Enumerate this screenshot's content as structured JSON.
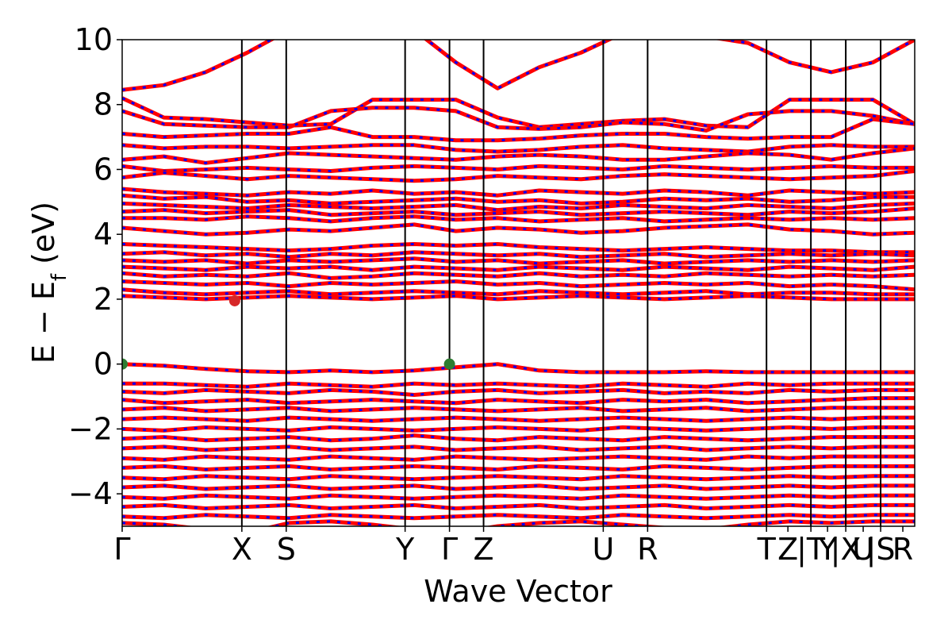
{
  "chart_data": {
    "type": "line",
    "title": "",
    "xlabel": "Wave Vector",
    "ylabel": "E − E",
    "ylabel_sub": "f",
    "ylabel_unit": " (eV)",
    "ylim": [
      -5,
      10
    ],
    "yticks": [
      -4,
      -2,
      0,
      2,
      4,
      6,
      8,
      10
    ],
    "ytick_labels": [
      "−4",
      "−2",
      "0",
      "2",
      "4",
      "6",
      "8",
      "10"
    ],
    "xlim": [
      0,
      1
    ],
    "kpath": [
      {
        "label": "Γ",
        "x": 0.0
      },
      {
        "label": "X",
        "x": 0.151
      },
      {
        "label": "S",
        "x": 0.207
      },
      {
        "label": "Y",
        "x": 0.357
      },
      {
        "label": "Γ",
        "x": 0.413
      },
      {
        "label": "Z",
        "x": 0.456
      },
      {
        "label": "U",
        "x": 0.607
      },
      {
        "label": "R",
        "x": 0.663
      },
      {
        "label": "T",
        "x": 0.813
      },
      {
        "label": "Z",
        "x": 0.84
      },
      {
        "label": "|T",
        "x": 0.869
      },
      {
        "label": "Y",
        "x": 0.89
      },
      {
        "label": "|X",
        "x": 0.913
      },
      {
        "label": "U",
        "x": 0.935
      },
      {
        "label": "|S",
        "x": 0.957
      },
      {
        "label": "R",
        "x": 0.985
      }
    ],
    "vlines": [
      0.151,
      0.207,
      0.357,
      0.413,
      0.456,
      0.607,
      0.663,
      0.813,
      0.869,
      0.913,
      0.957
    ],
    "grid": false,
    "series": [
      {
        "line_color": "#ff0000",
        "dash_color": "#0000ff"
      }
    ],
    "markers": [
      {
        "x": 0.0,
        "y": 0.0,
        "color": "#2e7d32"
      },
      {
        "x": 0.413,
        "y": 0.0,
        "color": "#2e7d32"
      },
      {
        "x": 0.142,
        "y": 1.95,
        "color": "#d62728"
      }
    ],
    "bands": [
      {
        "y": [
          8.45,
          8.6,
          9.0,
          9.6,
          10.3,
          10.8,
          10.7,
          10.3,
          9.3,
          8.5,
          9.15,
          9.6,
          10.2,
          10.5,
          10.1,
          9.9,
          9.3,
          9.0,
          9.3,
          10.0
        ]
      },
      {
        "y": [
          8.2,
          7.6,
          7.55,
          7.45,
          7.35,
          7.4,
          8.15,
          8.15,
          8.15,
          7.6,
          7.3,
          7.4,
          7.5,
          7.55,
          7.35,
          7.3,
          8.15,
          8.15,
          8.15,
          7.4
        ]
      },
      {
        "y": [
          7.8,
          7.4,
          7.35,
          7.3,
          7.3,
          7.8,
          7.9,
          7.9,
          7.8,
          7.3,
          7.25,
          7.3,
          7.45,
          7.4,
          7.2,
          7.7,
          7.8,
          7.8,
          7.65,
          7.4
        ]
      },
      {
        "y": [
          7.1,
          7.0,
          7.05,
          7.1,
          7.1,
          7.3,
          7.0,
          7.0,
          6.9,
          6.9,
          6.95,
          7.05,
          7.1,
          7.1,
          7.0,
          6.95,
          7.0,
          7.0,
          7.55,
          7.4
        ]
      },
      {
        "y": [
          6.75,
          6.65,
          6.7,
          6.7,
          6.65,
          6.7,
          6.75,
          6.75,
          6.6,
          6.55,
          6.6,
          6.7,
          6.75,
          6.65,
          6.6,
          6.55,
          6.7,
          6.75,
          6.7,
          6.7
        ]
      },
      {
        "y": [
          6.3,
          6.4,
          6.2,
          6.35,
          6.5,
          6.45,
          6.4,
          6.35,
          6.3,
          6.4,
          6.45,
          6.4,
          6.3,
          6.3,
          6.4,
          6.5,
          6.45,
          6.3,
          6.5,
          6.65
        ]
      },
      {
        "y": [
          6.1,
          5.95,
          6.0,
          6.05,
          6.0,
          5.95,
          6.05,
          6.1,
          6.05,
          6.0,
          6.1,
          6.05,
          6.0,
          6.1,
          6.05,
          6.0,
          6.05,
          6.1,
          6.05,
          6.05
        ]
      },
      {
        "y": [
          5.75,
          5.9,
          5.8,
          5.7,
          5.8,
          5.75,
          5.7,
          5.65,
          5.7,
          5.8,
          5.75,
          5.7,
          5.8,
          5.85,
          5.8,
          5.75,
          5.7,
          5.75,
          5.8,
          5.95
        ]
      },
      {
        "y": [
          5.4,
          5.3,
          5.25,
          5.2,
          5.3,
          5.25,
          5.35,
          5.25,
          5.3,
          5.2,
          5.35,
          5.3,
          5.25,
          5.35,
          5.3,
          5.2,
          5.35,
          5.3,
          5.25,
          5.3
        ]
      },
      {
        "y": [
          5.2,
          5.1,
          5.15,
          5.0,
          5.05,
          4.95,
          5.0,
          5.05,
          5.1,
          5.0,
          5.05,
          4.95,
          5.0,
          5.1,
          5.05,
          5.1,
          5.0,
          5.05,
          5.15,
          5.15
        ]
      },
      {
        "y": [
          4.95,
          4.9,
          4.85,
          4.8,
          4.9,
          4.85,
          4.8,
          4.85,
          4.9,
          4.75,
          4.85,
          4.8,
          4.9,
          4.85,
          4.8,
          4.9,
          4.85,
          4.8,
          4.9,
          4.95
        ]
      },
      {
        "y": [
          4.7,
          4.75,
          4.65,
          4.7,
          4.75,
          4.6,
          4.65,
          4.7,
          4.6,
          4.65,
          4.7,
          4.6,
          4.65,
          4.7,
          4.65,
          4.6,
          4.7,
          4.65,
          4.7,
          4.8
        ]
      },
      {
        "y": [
          4.5,
          4.5,
          4.45,
          4.55,
          4.5,
          4.4,
          4.5,
          4.55,
          4.45,
          4.5,
          4.4,
          4.45,
          4.5,
          4.4,
          4.45,
          4.5,
          4.45,
          4.5,
          4.45,
          4.5
        ]
      },
      {
        "y": [
          4.2,
          4.1,
          4.0,
          4.05,
          4.15,
          4.1,
          4.2,
          4.3,
          4.1,
          4.2,
          4.15,
          4.05,
          4.1,
          4.2,
          4.25,
          4.3,
          4.15,
          4.1,
          4.0,
          4.05
        ]
      },
      {
        "y": [
          3.7,
          3.65,
          3.6,
          3.55,
          3.5,
          3.55,
          3.65,
          3.7,
          3.65,
          3.7,
          3.6,
          3.55,
          3.5,
          3.55,
          3.6,
          3.55,
          3.5,
          3.5,
          3.45,
          3.45
        ]
      },
      {
        "y": [
          3.4,
          3.45,
          3.35,
          3.4,
          3.3,
          3.4,
          3.35,
          3.45,
          3.4,
          3.35,
          3.4,
          3.3,
          3.35,
          3.4,
          3.3,
          3.35,
          3.4,
          3.35,
          3.4,
          3.35
        ]
      },
      {
        "y": [
          3.2,
          3.15,
          3.2,
          3.1,
          3.2,
          3.15,
          3.2,
          3.25,
          3.15,
          3.2,
          3.1,
          3.15,
          3.2,
          3.1,
          3.15,
          3.2,
          3.15,
          3.2,
          3.15,
          3.2
        ]
      },
      {
        "y": [
          3.0,
          2.95,
          2.9,
          3.0,
          2.95,
          3.0,
          2.9,
          3.0,
          2.95,
          2.9,
          3.0,
          2.95,
          2.9,
          3.0,
          2.95,
          2.9,
          3.0,
          2.95,
          2.9,
          3.0
        ]
      },
      {
        "y": [
          2.8,
          2.7,
          2.75,
          2.7,
          2.8,
          2.65,
          2.7,
          2.8,
          2.75,
          2.7,
          2.8,
          2.7,
          2.75,
          2.7,
          2.8,
          2.75,
          2.7,
          2.75,
          2.7,
          2.75
        ]
      },
      {
        "y": [
          2.55,
          2.5,
          2.45,
          2.5,
          2.4,
          2.5,
          2.45,
          2.5,
          2.55,
          2.45,
          2.5,
          2.4,
          2.45,
          2.5,
          2.45,
          2.5,
          2.4,
          2.45,
          2.4,
          2.3
        ]
      },
      {
        "y": [
          2.3,
          2.2,
          2.15,
          2.2,
          2.25,
          2.15,
          2.2,
          2.25,
          2.2,
          2.15,
          2.25,
          2.2,
          2.15,
          2.2,
          2.25,
          2.15,
          2.2,
          2.2,
          2.15,
          2.15
        ]
      },
      {
        "y": [
          2.1,
          2.05,
          2.0,
          2.05,
          2.1,
          2.05,
          2.0,
          2.05,
          2.1,
          2.0,
          2.05,
          2.1,
          2.05,
          2.0,
          2.05,
          2.1,
          2.05,
          2.0,
          2.0,
          2.0
        ]
      },
      {
        "y": [
          0.0,
          -0.05,
          -0.15,
          -0.22,
          -0.25,
          -0.2,
          -0.25,
          -0.2,
          -0.1,
          0.0,
          -0.2,
          -0.25,
          -0.25,
          -0.25,
          -0.22,
          -0.25,
          -0.25,
          -0.25,
          -0.25,
          -0.25
        ]
      },
      {
        "y": [
          -0.6,
          -0.6,
          -0.65,
          -0.7,
          -0.6,
          -0.65,
          -0.7,
          -0.6,
          -0.65,
          -0.6,
          -0.65,
          -0.7,
          -0.6,
          -0.65,
          -0.7,
          -0.6,
          -0.65,
          -0.6,
          -0.6,
          -0.6
        ]
      },
      {
        "y": [
          -0.85,
          -0.9,
          -0.8,
          -0.85,
          -0.9,
          -0.8,
          -0.85,
          -0.95,
          -0.85,
          -0.8,
          -0.9,
          -0.85,
          -0.8,
          -0.9,
          -0.85,
          -0.9,
          -0.8,
          -0.85,
          -0.8,
          -0.8
        ]
      },
      {
        "y": [
          -1.1,
          -1.2,
          -1.15,
          -1.1,
          -1.2,
          -1.15,
          -1.1,
          -1.15,
          -1.2,
          -1.1,
          -1.15,
          -1.2,
          -1.1,
          -1.15,
          -1.1,
          -1.2,
          -1.15,
          -1.1,
          -1.05,
          -1.05
        ]
      },
      {
        "y": [
          -1.4,
          -1.35,
          -1.45,
          -1.4,
          -1.35,
          -1.45,
          -1.4,
          -1.35,
          -1.4,
          -1.45,
          -1.4,
          -1.35,
          -1.45,
          -1.4,
          -1.35,
          -1.45,
          -1.4,
          -1.35,
          -1.35,
          -1.35
        ]
      },
      {
        "y": [
          -1.7,
          -1.65,
          -1.7,
          -1.75,
          -1.65,
          -1.7,
          -1.75,
          -1.7,
          -1.65,
          -1.7,
          -1.75,
          -1.7,
          -1.65,
          -1.7,
          -1.75,
          -1.7,
          -1.65,
          -1.7,
          -1.65,
          -1.65
        ]
      },
      {
        "y": [
          -2.0,
          -2.05,
          -1.95,
          -2.0,
          -2.05,
          -1.95,
          -2.0,
          -2.05,
          -2.0,
          -1.95,
          -2.0,
          -2.05,
          -1.95,
          -2.0,
          -2.05,
          -2.0,
          -1.95,
          -2.0,
          -1.95,
          -1.95
        ]
      },
      {
        "y": [
          -2.3,
          -2.25,
          -2.35,
          -2.3,
          -2.25,
          -2.35,
          -2.3,
          -2.2,
          -2.3,
          -2.35,
          -2.25,
          -2.3,
          -2.35,
          -2.25,
          -2.3,
          -2.35,
          -2.3,
          -2.25,
          -2.25,
          -2.25
        ]
      },
      {
        "y": [
          -2.6,
          -2.55,
          -2.65,
          -2.6,
          -2.55,
          -2.65,
          -2.6,
          -2.55,
          -2.65,
          -2.6,
          -2.55,
          -2.65,
          -2.6,
          -2.55,
          -2.65,
          -2.6,
          -2.55,
          -2.6,
          -2.55,
          -2.55
        ]
      },
      {
        "y": [
          -2.9,
          -2.95,
          -2.85,
          -2.9,
          -2.95,
          -2.85,
          -2.9,
          -2.95,
          -2.85,
          -2.9,
          -2.95,
          -2.9,
          -2.85,
          -2.9,
          -2.95,
          -2.85,
          -2.9,
          -2.85,
          -2.85,
          -2.85
        ]
      },
      {
        "y": [
          -3.2,
          -3.15,
          -3.25,
          -3.2,
          -3.15,
          -3.25,
          -3.2,
          -3.15,
          -3.2,
          -3.25,
          -3.15,
          -3.2,
          -3.25,
          -3.15,
          -3.2,
          -3.25,
          -3.2,
          -3.15,
          -3.15,
          -3.15
        ]
      },
      {
        "y": [
          -3.5,
          -3.55,
          -3.45,
          -3.5,
          -3.55,
          -3.45,
          -3.5,
          -3.55,
          -3.5,
          -3.45,
          -3.5,
          -3.55,
          -3.45,
          -3.5,
          -3.55,
          -3.5,
          -3.45,
          -3.5,
          -3.45,
          -3.45
        ]
      },
      {
        "y": [
          -3.8,
          -3.75,
          -3.85,
          -3.8,
          -3.75,
          -3.85,
          -3.8,
          -3.75,
          -3.85,
          -3.8,
          -3.75,
          -3.85,
          -3.8,
          -3.75,
          -3.85,
          -3.8,
          -3.75,
          -3.8,
          -3.75,
          -3.75
        ]
      },
      {
        "y": [
          -4.1,
          -4.15,
          -4.05,
          -4.1,
          -4.15,
          -4.05,
          -4.1,
          -4.15,
          -4.1,
          -4.05,
          -4.1,
          -4.15,
          -4.05,
          -4.1,
          -4.15,
          -4.1,
          -4.05,
          -4.1,
          -4.05,
          -4.05
        ]
      },
      {
        "y": [
          -4.4,
          -4.35,
          -4.45,
          -4.4,
          -4.35,
          -4.45,
          -4.4,
          -4.35,
          -4.45,
          -4.4,
          -4.35,
          -4.45,
          -4.4,
          -4.35,
          -4.45,
          -4.4,
          -4.35,
          -4.4,
          -4.35,
          -4.35
        ]
      },
      {
        "y": [
          -4.7,
          -4.75,
          -4.65,
          -4.7,
          -4.75,
          -4.65,
          -4.7,
          -4.75,
          -4.7,
          -4.65,
          -4.7,
          -4.75,
          -4.65,
          -4.7,
          -4.75,
          -4.7,
          -4.65,
          -4.7,
          -4.65,
          -4.65
        ]
      },
      {
        "y": [
          -4.9,
          -4.95,
          -5.1,
          -5.2,
          -4.9,
          -4.85,
          -4.95,
          -5.1,
          -5.2,
          -5.0,
          -4.9,
          -4.85,
          -4.95,
          -5.05,
          -5.1,
          -4.95,
          -4.85,
          -4.9,
          -4.85,
          -4.85
        ]
      }
    ]
  }
}
